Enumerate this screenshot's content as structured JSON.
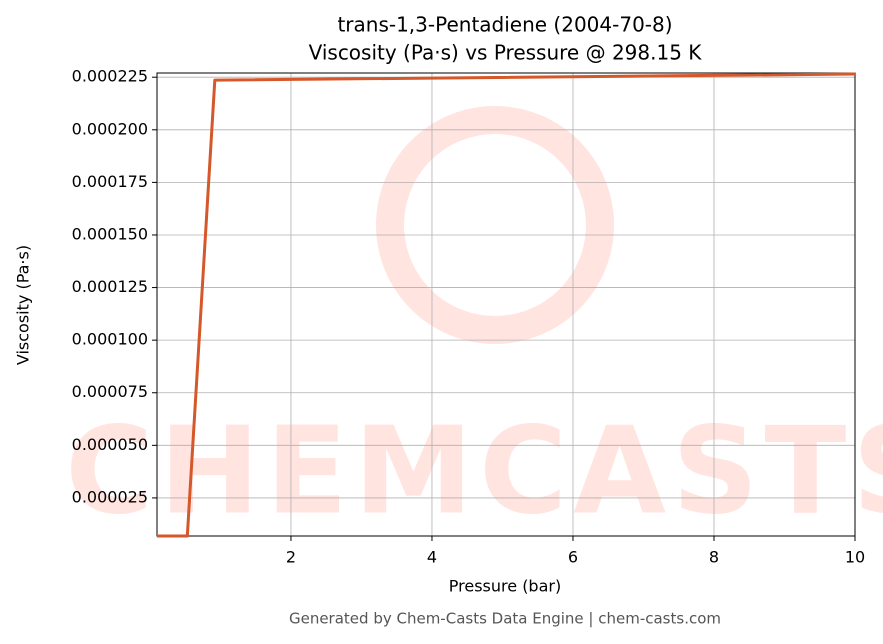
{
  "chart_data": {
    "type": "line",
    "title": "trans-1,3-Pentadiene (2004-70-8)",
    "subtitle": "Viscosity (Pa·s) vs Pressure @ 298.15 K",
    "x_label": "Pressure (bar)",
    "y_label": "Viscosity (Pa·s)",
    "footer": "Generated by Chem-Casts Data Engine | chem-casts.com",
    "watermark": "CHEMCASTS",
    "x": [
      0.1,
      0.53,
      0.92,
      10
    ],
    "series": [
      {
        "name": "Viscosity",
        "color": "#d4582a",
        "values": [
          6.9e-06,
          6.9e-06,
          0.0002236,
          0.0002265
        ]
      }
    ],
    "xlim": [
      0.1,
      10
    ],
    "ylim": [
      6.9e-06,
      0.000227
    ],
    "xticks": [
      2,
      4,
      6,
      8,
      10
    ],
    "yticks": [
      2.5e-05,
      {
        "value": 5e-05,
        "label": "0.000050"
      },
      7.5e-05,
      {
        "value": 0.0001,
        "label": "0.000100"
      },
      0.000125,
      {
        "value": 0.00015,
        "label": "0.000150"
      },
      0.000175,
      {
        "value": 0.0002,
        "label": "0.000200"
      },
      0.000225
    ],
    "grid": true
  }
}
